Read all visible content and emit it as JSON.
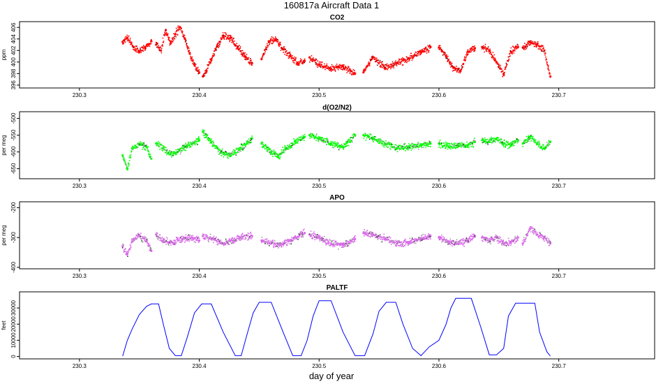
{
  "figure": {
    "title": "160817a   Aircraft Data 1",
    "xlabel": "day of year"
  },
  "chart_data": [
    {
      "type": "scatter",
      "title": "CO2",
      "xlabel": "",
      "ylabel": "ppm",
      "xlim": [
        230.25,
        230.78
      ],
      "ylim": [
        395.5,
        407.0
      ],
      "xticks": [
        230.3,
        230.4,
        230.5,
        230.6,
        230.7
      ],
      "yticks": [
        396,
        398,
        400,
        402,
        404,
        406
      ],
      "ytick_labels": [
        "396",
        "398",
        "400",
        "402",
        "404",
        "406"
      ],
      "grid": false,
      "series": [
        {
          "color": "#ff0000",
          "segments": [
            {
              "x": [
                230.336,
                230.34,
                230.345,
                230.35,
                230.355,
                230.36
              ],
              "y": [
                403.5,
                404.2,
                402.6,
                401.8,
                402.4,
                403.6
              ]
            },
            {
              "x": [
                230.364,
                230.368,
                230.372,
                230.376,
                230.38,
                230.384,
                230.388,
                230.392,
                230.396,
                230.4
              ],
              "y": [
                403.0,
                402.0,
                405.5,
                403.2,
                404.8,
                406.0,
                404.0,
                401.5,
                399.5,
                398.2
              ]
            },
            {
              "x": [
                230.403,
                230.406,
                230.41,
                230.415,
                230.42,
                230.426,
                230.432,
                230.438,
                230.444
              ],
              "y": [
                397.5,
                398.5,
                400.5,
                402.8,
                404.6,
                404.2,
                402.5,
                401.0,
                399.8
              ]
            },
            {
              "x": [
                230.452,
                230.458,
                230.464,
                230.47,
                230.476,
                230.482,
                230.488
              ],
              "y": [
                400.5,
                403.6,
                404.0,
                402.2,
                401.0,
                399.8,
                400.2
              ]
            },
            {
              "x": [
                230.492,
                230.5,
                230.51,
                230.52,
                230.53
              ],
              "y": [
                400.8,
                399.6,
                398.8,
                399.2,
                398.0
              ]
            },
            {
              "x": [
                230.537,
                230.545,
                230.555,
                230.565,
                230.575,
                230.585,
                230.593
              ],
              "y": [
                398.2,
                400.8,
                399.0,
                399.8,
                400.6,
                401.8,
                402.6
              ]
            },
            {
              "x": [
                230.6,
                230.606,
                230.612,
                230.618,
                230.624,
                230.63
              ],
              "y": [
                402.5,
                401.0,
                399.0,
                398.4,
                401.8,
                402.4
              ]
            },
            {
              "x": [
                230.636,
                230.642,
                230.648,
                230.654,
                230.66,
                230.666
              ],
              "y": [
                402.6,
                402.0,
                400.0,
                398.0,
                401.8,
                402.6
              ]
            },
            {
              "x": [
                230.67,
                230.676,
                230.682,
                230.688,
                230.693
              ],
              "y": [
                402.5,
                403.4,
                403.0,
                402.0,
                397.5
              ]
            }
          ]
        }
      ]
    },
    {
      "type": "scatter",
      "title": "d(O2/N2)",
      "xlabel": "",
      "ylabel": "per meg",
      "xlim": [
        230.25,
        230.78
      ],
      "ylim": [
        -680,
        -480
      ],
      "xticks": [
        230.3,
        230.4,
        230.5,
        230.6,
        230.7
      ],
      "yticks": [
        -650,
        -600,
        -550,
        -500
      ],
      "ytick_labels": [
        "-650",
        "-600",
        "-550",
        "-500"
      ],
      "grid": false,
      "series": [
        {
          "color": "#00ff00",
          "segments": [
            {
              "x": [
                230.336,
                230.34,
                230.344,
                230.35,
                230.356,
                230.36
              ],
              "y": [
                -610,
                -650,
                -590,
                -575,
                -585,
                -620
              ]
            },
            {
              "x": [
                230.364,
                230.37,
                230.376,
                230.382,
                230.388,
                230.394,
                230.4
              ],
              "y": [
                -575,
                -590,
                -605,
                -600,
                -585,
                -575,
                -565
              ]
            },
            {
              "x": [
                230.403,
                230.41,
                230.418,
                230.426,
                230.434,
                230.444
              ],
              "y": [
                -540,
                -570,
                -600,
                -610,
                -590,
                -560
              ]
            },
            {
              "x": [
                230.452,
                230.46,
                230.466,
                230.472,
                230.48,
                230.488
              ],
              "y": [
                -575,
                -600,
                -615,
                -590,
                -570,
                -555
              ]
            },
            {
              "x": [
                230.492,
                230.5,
                230.51,
                230.52,
                230.53
              ],
              "y": [
                -550,
                -560,
                -575,
                -585,
                -550
              ]
            },
            {
              "x": [
                230.537,
                230.545,
                230.555,
                230.565,
                230.575,
                230.585,
                230.593
              ],
              "y": [
                -550,
                -560,
                -575,
                -590,
                -585,
                -580,
                -575
              ]
            },
            {
              "x": [
                230.6,
                230.608,
                230.616,
                230.624,
                230.63
              ],
              "y": [
                -575,
                -585,
                -580,
                -580,
                -570
              ]
            },
            {
              "x": [
                230.636,
                230.642,
                230.648,
                230.654,
                230.66,
                230.666
              ],
              "y": [
                -565,
                -570,
                -560,
                -575,
                -580,
                -565
              ]
            },
            {
              "x": [
                230.67,
                230.676,
                230.682,
                230.688,
                230.693
              ],
              "y": [
                -575,
                -555,
                -575,
                -590,
                -570
              ]
            }
          ]
        }
      ]
    },
    {
      "type": "scatter",
      "title": "APO",
      "xlabel": "",
      "ylabel": "per meg",
      "xlim": [
        230.25,
        230.78
      ],
      "ylim": [
        -405,
        -180
      ],
      "xticks": [
        230.3,
        230.4,
        230.5,
        230.6,
        230.7
      ],
      "yticks": [
        -400,
        -300,
        -200
      ],
      "ytick_labels": [
        "-400",
        "-300",
        "-200"
      ],
      "grid": false,
      "series": [
        {
          "color": "#dd66ee",
          "segments": [
            {
              "x": [
                230.336,
                230.34,
                230.345,
                230.35,
                230.356,
                230.36
              ],
              "y": [
                -330,
                -355,
                -305,
                -295,
                -310,
                -345
              ]
            },
            {
              "x": [
                230.364,
                230.37,
                230.378,
                230.386,
                230.394,
                230.4
              ],
              "y": [
                -290,
                -310,
                -318,
                -305,
                -300,
                -310
              ]
            },
            {
              "x": [
                230.403,
                230.412,
                230.42,
                230.428,
                230.436,
                230.444
              ],
              "y": [
                -295,
                -305,
                -320,
                -310,
                -298,
                -295
              ]
            },
            {
              "x": [
                230.452,
                230.46,
                230.468,
                230.476,
                230.484,
                230.488
              ],
              "y": [
                -310,
                -320,
                -325,
                -310,
                -290,
                -285
              ]
            },
            {
              "x": [
                230.492,
                230.5,
                230.51,
                230.52,
                230.53
              ],
              "y": [
                -290,
                -300,
                -320,
                -325,
                -305
              ]
            },
            {
              "x": [
                230.537,
                230.545,
                230.555,
                230.565,
                230.575,
                230.585,
                230.593
              ],
              "y": [
                -285,
                -290,
                -305,
                -320,
                -315,
                -305,
                -295
              ]
            },
            {
              "x": [
                230.6,
                230.608,
                230.616,
                230.624,
                230.63
              ],
              "y": [
                -300,
                -315,
                -320,
                -310,
                -295
              ]
            },
            {
              "x": [
                230.636,
                230.642,
                230.648,
                230.654,
                230.66,
                230.666
              ],
              "y": [
                -300,
                -310,
                -300,
                -320,
                -315,
                -300
              ]
            },
            {
              "x": [
                230.67,
                230.676,
                230.682,
                230.688,
                230.693
              ],
              "y": [
                -320,
                -270,
                -290,
                -300,
                -320
              ]
            }
          ]
        }
      ]
    },
    {
      "type": "line",
      "title": "PALTF",
      "xlabel": "day of year",
      "ylabel": "feet",
      "xlim": [
        230.25,
        230.78
      ],
      "ylim": [
        -1500,
        40000
      ],
      "xticks": [
        230.3,
        230.4,
        230.5,
        230.6,
        230.7
      ],
      "yticks": [
        0,
        10000,
        20000,
        30000
      ],
      "ytick_labels": [
        "0",
        "10000",
        "20000",
        "30000"
      ],
      "grid": false,
      "series": [
        {
          "color": "#0000ff",
          "x": [
            230.336,
            230.34,
            230.344,
            230.35,
            230.356,
            230.36,
            230.366,
            230.37,
            230.375,
            230.38,
            230.385,
            230.39,
            230.396,
            230.402,
            230.406,
            230.41,
            230.42,
            230.43,
            230.435,
            230.44,
            230.445,
            230.45,
            230.455,
            230.46,
            230.47,
            230.478,
            230.485,
            230.49,
            230.495,
            230.5,
            230.505,
            230.51,
            230.52,
            230.53,
            230.538,
            230.545,
            230.55,
            230.556,
            230.56,
            230.564,
            230.57,
            230.578,
            230.585,
            230.592,
            230.6,
            230.606,
            230.61,
            230.614,
            230.62,
            230.627,
            230.635,
            230.642,
            230.648,
            230.654,
            230.658,
            230.664,
            230.672,
            230.68,
            230.684,
            230.69,
            230.693
          ],
          "y": [
            200,
            10000,
            17000,
            26000,
            31000,
            32500,
            32500,
            20000,
            5000,
            500,
            500,
            12000,
            27000,
            32500,
            32500,
            32500,
            15000,
            500,
            500,
            14000,
            27000,
            33500,
            33500,
            33500,
            15000,
            500,
            500,
            10000,
            25000,
            34500,
            34500,
            34500,
            15000,
            500,
            500,
            14000,
            28000,
            33500,
            33500,
            33500,
            20000,
            5000,
            500,
            6000,
            10000,
            20000,
            30000,
            36000,
            36000,
            36000,
            18000,
            1000,
            1000,
            5000,
            25000,
            33000,
            33000,
            33000,
            15000,
            3000,
            200
          ]
        }
      ]
    }
  ]
}
